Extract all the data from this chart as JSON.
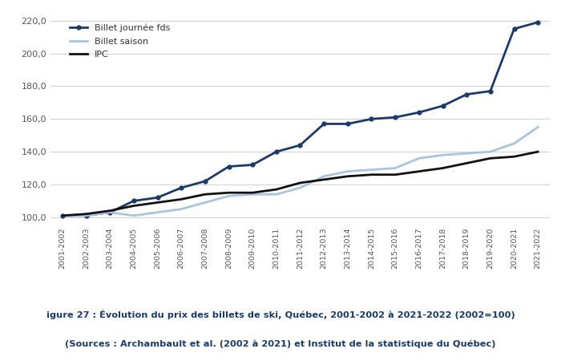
{
  "years": [
    "2001-2002",
    "2002-2003",
    "2003-2004",
    "2004-2005",
    "2005-2006",
    "2006-2007",
    "2007-2008",
    "2008-2009",
    "2009-2010",
    "2010-2011",
    "2011-2012",
    "2012-2013",
    "2013-2014",
    "2014-2015",
    "2015-2016",
    "2016-2017",
    "2017-2018",
    "2018-2019",
    "2019-2020",
    "2020-2021",
    "2021-2022"
  ],
  "billet_journee": [
    101,
    101,
    103,
    110,
    112,
    118,
    122,
    131,
    132,
    140,
    144,
    157,
    157,
    160,
    161,
    164,
    168,
    175,
    177,
    215,
    219
  ],
  "billet_saison": [
    101,
    101,
    103,
    101,
    103,
    105,
    109,
    113,
    114,
    114,
    118,
    125,
    128,
    129,
    130,
    136,
    138,
    139,
    140,
    145,
    155
  ],
  "ipc": [
    101,
    102,
    104,
    107,
    109,
    111,
    114,
    115,
    115,
    117,
    121,
    123,
    125,
    126,
    126,
    128,
    130,
    133,
    136,
    137,
    140
  ],
  "line_color_journee": "#1a3a6b",
  "line_color_saison": "#a8c4e0",
  "line_color_ipc": "#111111",
  "legend_journee": "Billet journée fds",
  "legend_saison": "Billet saison",
  "legend_ipc": "IPC",
  "ylim_min": 96,
  "ylim_max": 226,
  "yticks": [
    100.0,
    120.0,
    140.0,
    160.0,
    180.0,
    200.0,
    220.0
  ],
  "caption_line1": "igure 27 : Évolution du prix des billets de ski, Québec, 2001-2002 à 2021-2022 (2002=100)",
  "caption_line2": "(Sources : Archambault et al. (2002 à 2021) et Institut de la statistique du Québec)",
  "caption_color": "#1a3a6b"
}
